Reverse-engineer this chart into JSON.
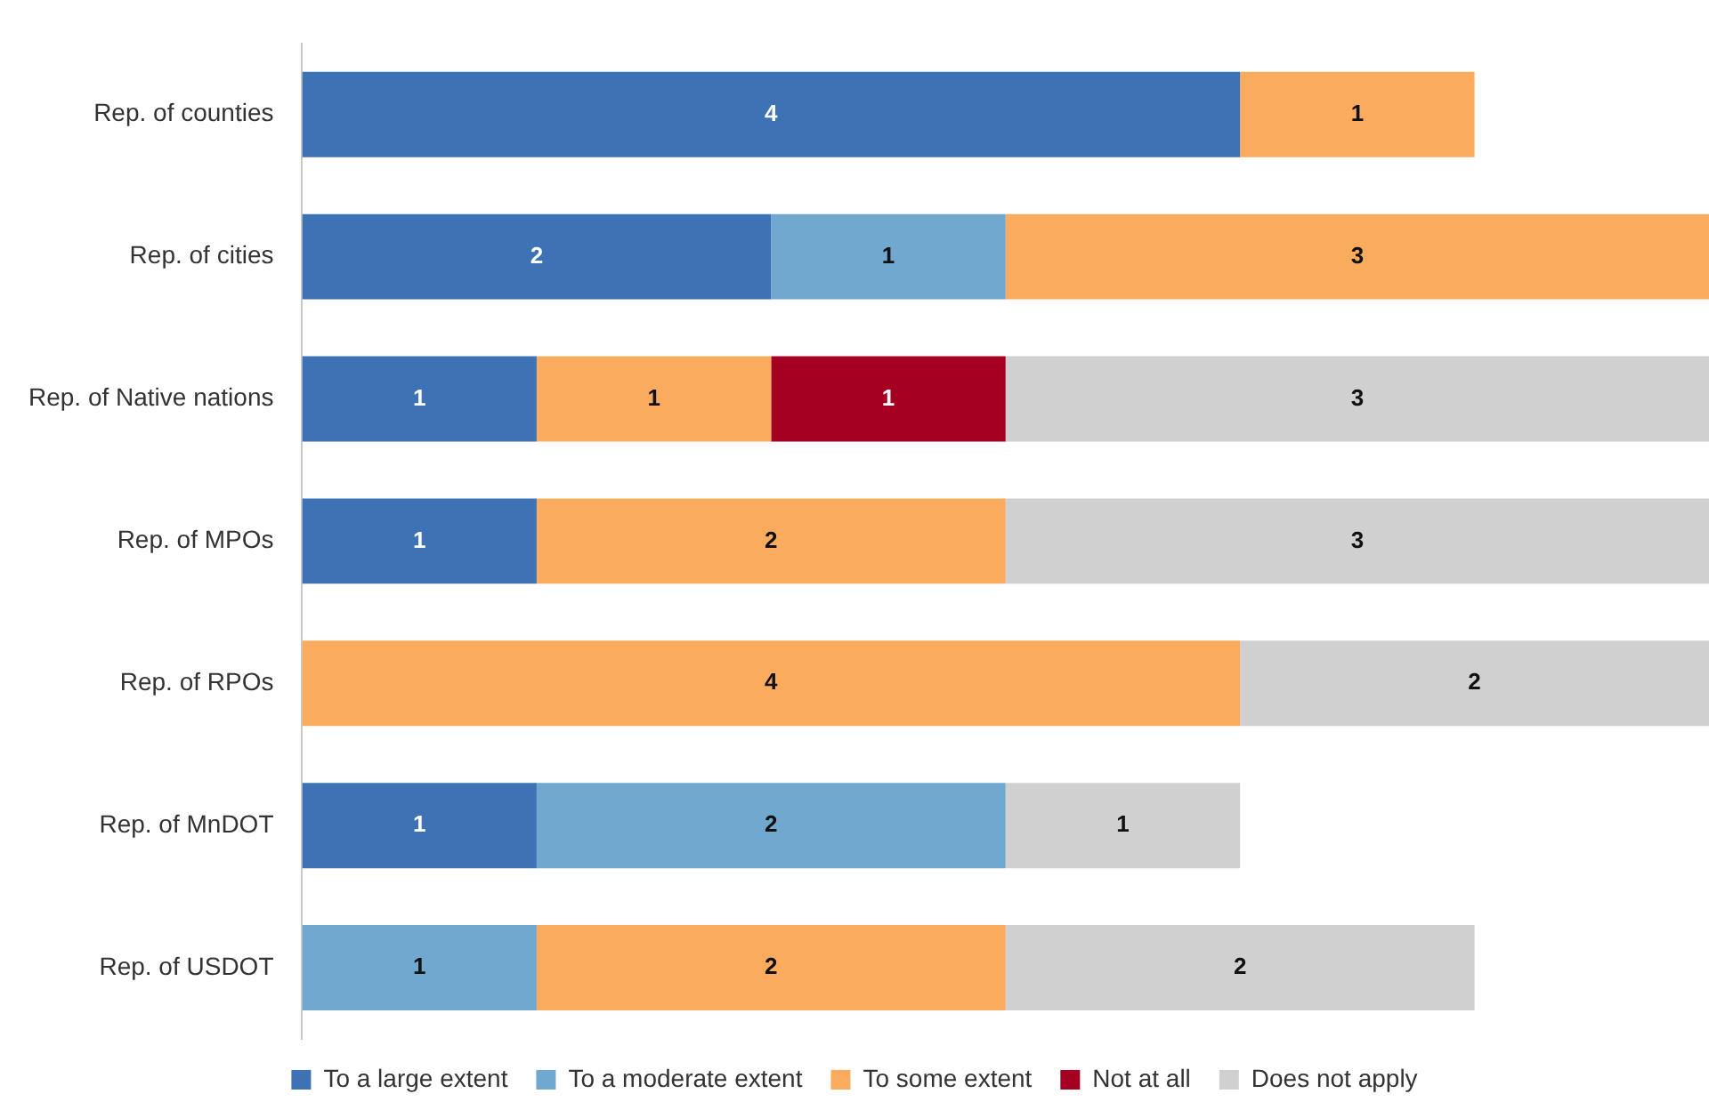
{
  "chart_data": {
    "type": "bar",
    "orientation": "horizontal",
    "stacked": true,
    "data_labels": true,
    "grid": false,
    "legend": "bottom",
    "categories": [
      "Rep. of counties",
      "Rep. of cities",
      "Rep. of Native nations",
      "Rep. of MPOs",
      "Rep. of RPOs",
      "Rep. of MnDOT",
      "Rep. of USDOT"
    ],
    "series": [
      {
        "name": "To a large extent",
        "color": "#3d72b4",
        "values": [
          4,
          2,
          1,
          1,
          null,
          1,
          null
        ]
      },
      {
        "name": "To a moderate extent",
        "color": "#71a8cf",
        "values": [
          null,
          1,
          null,
          null,
          null,
          2,
          1
        ]
      },
      {
        "name": "To some extent",
        "color": "#fbab5e",
        "values": [
          1,
          3,
          1,
          2,
          4,
          null,
          2
        ]
      },
      {
        "name": "Not at all",
        "color": "#a50021",
        "values": [
          null,
          null,
          1,
          null,
          null,
          null,
          null
        ]
      },
      {
        "name": "Does not apply",
        "color": "#d0d0d0",
        "values": [
          null,
          null,
          3,
          3,
          2,
          1,
          2
        ]
      }
    ]
  }
}
